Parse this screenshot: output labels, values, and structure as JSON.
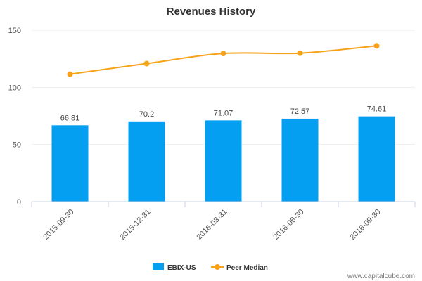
{
  "chart_data": {
    "type": "bar",
    "title": "Revenues History",
    "categories": [
      "2015-09-30",
      "2015-12-31",
      "2016-03-31",
      "2016-06-30",
      "2016-09-30"
    ],
    "series": [
      {
        "name": "EBIX-US",
        "type": "bar",
        "color": "#049ff1",
        "values": [
          66.81,
          70.2,
          71.07,
          72.57,
          74.61
        ]
      },
      {
        "name": "Peer Median",
        "type": "line",
        "color": "#f7a21b",
        "values": [
          111.5,
          120.8,
          129.6,
          129.9,
          136.3
        ]
      }
    ],
    "data_labels": [
      "66.81",
      "70.2",
      "71.07",
      "72.57",
      "74.61"
    ],
    "ylim": [
      0,
      150
    ],
    "y_ticks": [
      0,
      50,
      100,
      150
    ],
    "grid": true,
    "legend": "bottom-center"
  },
  "watermark": "www.capitalcube.com"
}
